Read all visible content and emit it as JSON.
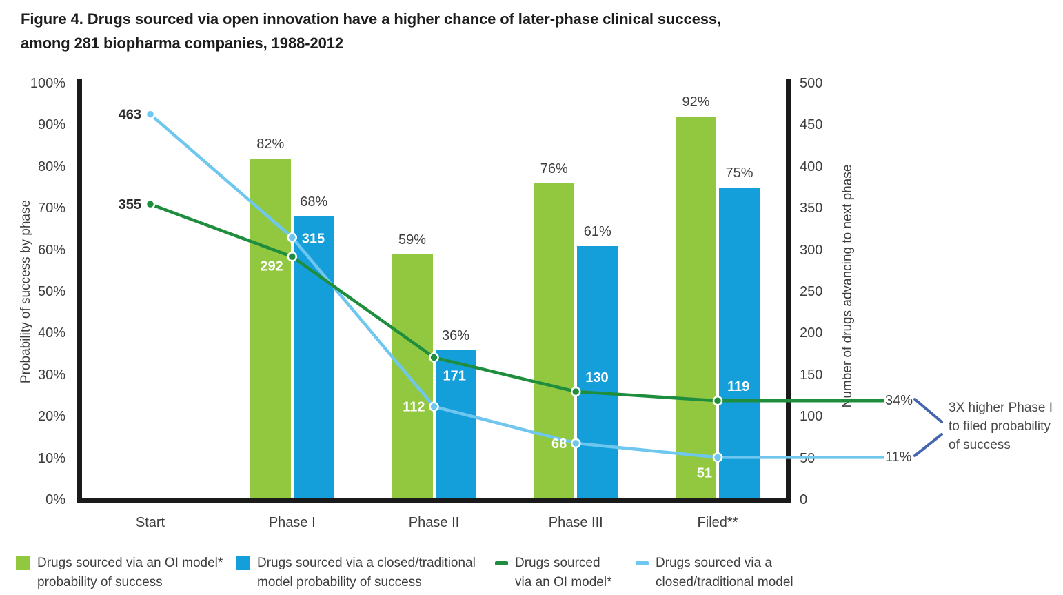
{
  "title": {
    "line1": "Figure 4. Drugs sourced via open innovation have a higher chance of later-phase clinical success,",
    "line2": "among 281 biopharma companies, 1988-2012"
  },
  "chart_data": {
    "type": "bar+line dual-axis combo",
    "categories": [
      "Start",
      "Phase I",
      "Phase II",
      "Phase III",
      "Filed**"
    ],
    "bar_series": [
      {
        "name": "Drugs sourced via an OI model* probability of success",
        "color": "#92C83F",
        "axis": "left",
        "values_pct": [
          null,
          82,
          59,
          76,
          92
        ],
        "labels": [
          "",
          "82%",
          "59%",
          "76%",
          "92%"
        ]
      },
      {
        "name": "Drugs sourced via a closed/traditional model probability of success",
        "color": "#149FDB",
        "axis": "left",
        "values_pct": [
          null,
          68,
          36,
          61,
          75
        ],
        "labels": [
          "",
          "68%",
          "36%",
          "61%",
          "75%"
        ]
      }
    ],
    "line_series": [
      {
        "name": "Drugs sourced via an OI model*",
        "color": "#1E8E3E",
        "axis": "right",
        "values": [
          355,
          292,
          171,
          130,
          119
        ],
        "end_label": "34%"
      },
      {
        "name": "Drugs sourced via a closed/traditional model",
        "color": "#6FC6EE",
        "axis": "right",
        "values": [
          463,
          315,
          112,
          68,
          51
        ],
        "end_label": "11%"
      }
    ],
    "left_axis": {
      "title": "Probability of success by phase",
      "ticks": [
        "100%",
        "90%",
        "80%",
        "70%",
        "60%",
        "50%",
        "40%",
        "30%",
        "20%",
        "10%",
        "0%"
      ],
      "range": [
        0,
        100
      ]
    },
    "right_axis": {
      "title": "Number of drugs advancing to next phase",
      "ticks": [
        "500",
        "450",
        "400",
        "350",
        "300",
        "250",
        "200",
        "150",
        "100",
        "50",
        "0"
      ],
      "range": [
        0,
        500
      ]
    },
    "annotation": {
      "line1": "3X higher Phase I",
      "line2": "to filed probability",
      "line3": "of success",
      "connector_color": "#4565AE"
    }
  },
  "legend": {
    "items": [
      {
        "marker": "square",
        "color": "#92C83F",
        "line1": "Drugs sourced via an OI model*",
        "line2": "probability of success"
      },
      {
        "marker": "square",
        "color": "#149FDB",
        "line1": "Drugs sourced via a closed/traditional",
        "line2": "model probability of success"
      },
      {
        "marker": "dash",
        "color": "#1E8E3E",
        "line1": "Drugs sourced",
        "line2": "via an OI model*"
      },
      {
        "marker": "dash",
        "color": "#6FC6EE",
        "line1": "Drugs sourced via a",
        "line2": "closed/traditional model"
      }
    ]
  }
}
